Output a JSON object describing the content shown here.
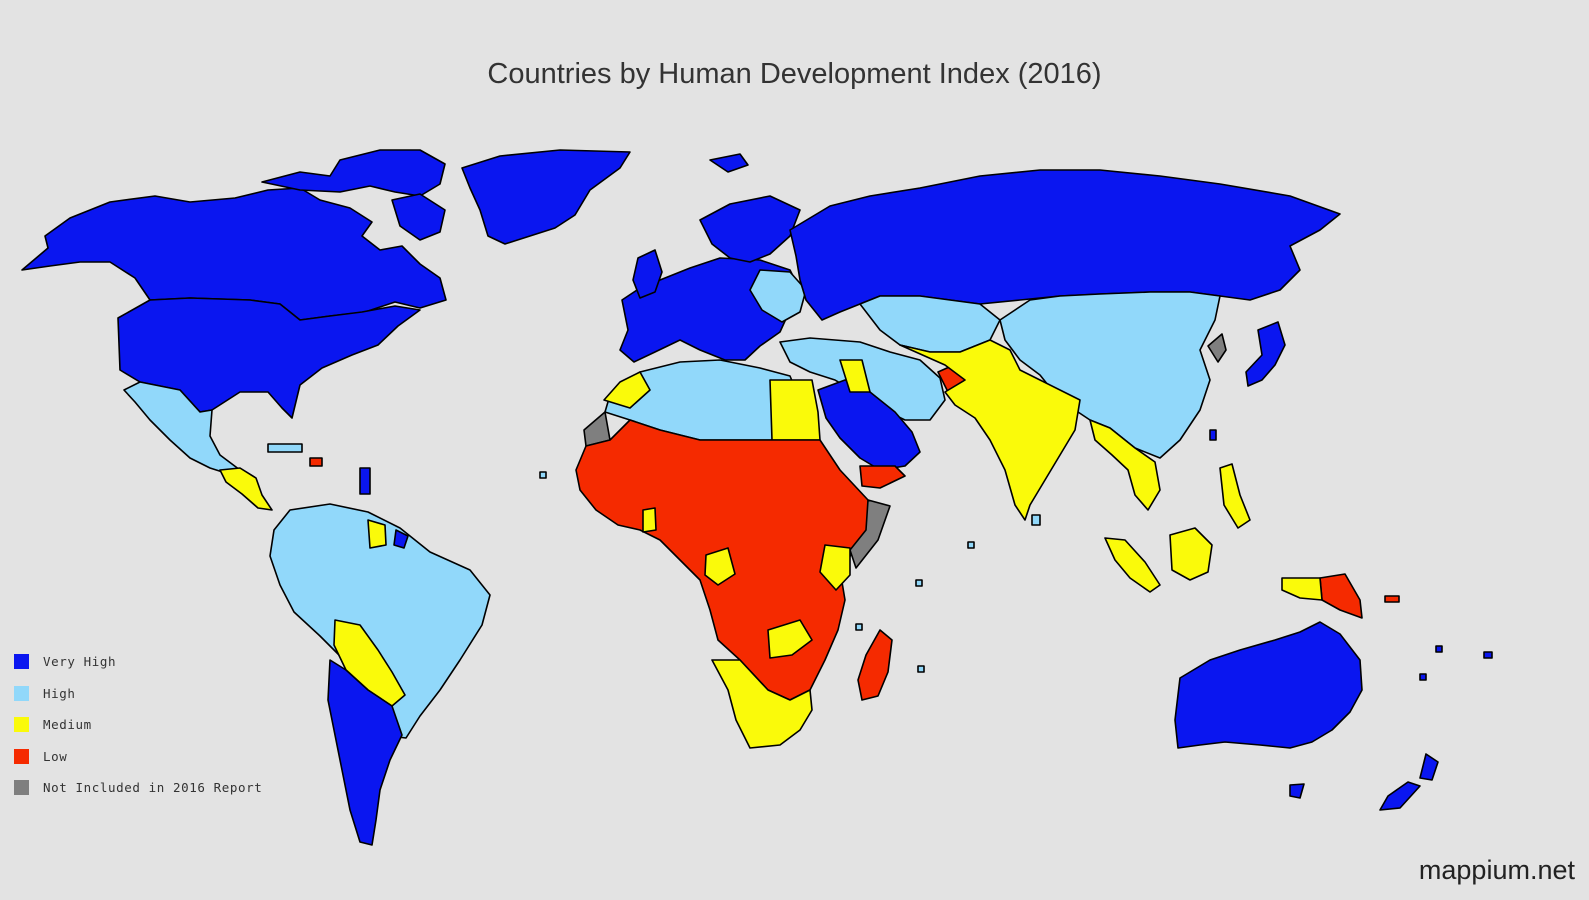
{
  "title": "Countries by Human Development Index (2016)",
  "credit": "mappium.net",
  "colors": {
    "very_high": "#0a16f0",
    "high": "#91d8fa",
    "medium": "#fafa0a",
    "low": "#f52a00",
    "not_included": "#7f7f7f",
    "background": "#e3e3e3"
  },
  "legend": [
    {
      "key": "very_high",
      "label": "Very High"
    },
    {
      "key": "high",
      "label": "High"
    },
    {
      "key": "medium",
      "label": "Medium"
    },
    {
      "key": "low",
      "label": "Low"
    },
    {
      "key": "not_included",
      "label": "Not Included in 2016 Report"
    }
  ]
}
